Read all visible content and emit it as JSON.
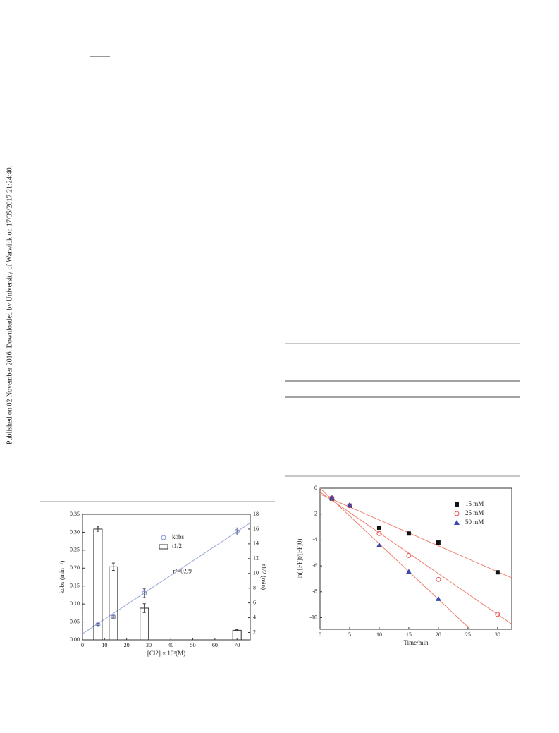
{
  "watermark": "Published on 02 November 2016. Downloaded by University of Warwick on 17/05/2017 21:24:40.",
  "chart_data": [
    {
      "type": "combo",
      "xlabel": "[Cl2] × 10³(M)",
      "ylabel": "kobs (min⁻¹)",
      "y2label": "t1/2 (min)",
      "annotation": "r²=0.99",
      "xlim": [
        0,
        76
      ],
      "xticks": [
        0,
        10,
        20,
        30,
        40,
        50,
        60,
        70
      ],
      "ylim": [
        0,
        0.35
      ],
      "yticks": [
        {
          "value": 0,
          "label": "0.00"
        },
        0.05,
        {
          "value": 0.1,
          "label": "0.10"
        },
        0.15,
        {
          "value": 0.2,
          "label": "0.20"
        },
        0.25,
        {
          "value": 0.3,
          "label": "0.30"
        },
        0.35
      ],
      "y2lim": [
        1,
        18
      ],
      "y2ticks": [
        2,
        4,
        6,
        8,
        10,
        12,
        14,
        16,
        18
      ],
      "series": [
        {
          "name": "kobs",
          "type": "scatter",
          "marker": "circle",
          "color": "#7b8fd8",
          "x": [
            7,
            14,
            28,
            70
          ],
          "values": [
            0.043,
            0.064,
            0.13,
            0.302
          ],
          "errors": [
            0.003,
            0.003,
            0.012,
            0.01
          ]
        },
        {
          "name": "t1/2",
          "type": "bar",
          "axis": "y2",
          "color": "#333333",
          "x": [
            7,
            14,
            28,
            70
          ],
          "values": [
            16,
            10.9,
            5.3,
            2.3
          ],
          "errors": [
            0.3,
            0.5,
            0.6,
            0.1
          ]
        }
      ],
      "fits": [
        {
          "color": "#9aaad8",
          "x": [
            0,
            76
          ],
          "values": [
            0.017,
            0.326
          ]
        }
      ]
    },
    {
      "type": "scatter",
      "xlabel": "Time/min",
      "ylabel": "ln( [FF]t/[FF]0)",
      "xlim": [
        0,
        32.4
      ],
      "xticks": [
        0,
        5,
        10,
        15,
        20,
        25,
        30
      ],
      "ylim": [
        -10.9,
        0
      ],
      "yticks": [
        0,
        -2,
        -4,
        -6,
        -8,
        -10
      ],
      "series": [
        {
          "name": "15 mM",
          "marker": "square",
          "color": "#111111",
          "x": [
            2,
            5,
            10,
            15,
            20,
            30
          ],
          "values": [
            -0.8,
            -1.35,
            -3.05,
            -3.5,
            -4.2,
            -6.5
          ]
        },
        {
          "name": "25 mM",
          "marker": "open-circle",
          "color": "#e05050",
          "x": [
            2,
            5,
            10,
            15,
            20,
            30
          ],
          "values": [
            -0.75,
            -1.35,
            -3.5,
            -5.2,
            -7.05,
            -9.75
          ]
        },
        {
          "name": "50 mM",
          "marker": "triangle",
          "color": "#3a4ab0",
          "x": [
            2,
            5,
            10,
            15,
            20
          ],
          "values": [
            -0.75,
            -1.3,
            -4.4,
            -6.45,
            -8.55
          ]
        }
      ],
      "fits": [
        {
          "color": "#f08070",
          "x": [
            0,
            32.4
          ],
          "values": [
            -0.45,
            -6.93
          ]
        },
        {
          "color": "#f08070",
          "x": [
            0,
            32.4
          ],
          "values": [
            -0.3,
            -10.5
          ]
        },
        {
          "color": "#f08070",
          "x": [
            0,
            25.4
          ],
          "values": [
            0,
            -10.9
          ]
        }
      ]
    }
  ]
}
